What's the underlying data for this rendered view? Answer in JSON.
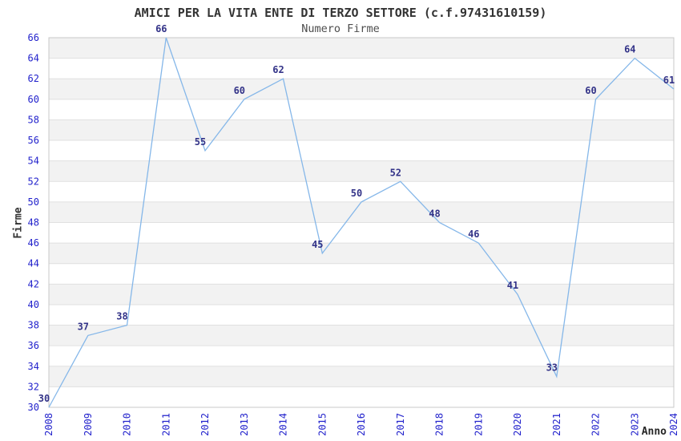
{
  "chart_data": {
    "type": "line",
    "title": "AMICI PER LA VITA ENTE DI TERZO SETTORE (c.f.97431610159)",
    "subtitle": "Numero Firme",
    "xlabel": "Anno",
    "ylabel": "Firme",
    "x": [
      2008,
      2009,
      2010,
      2011,
      2012,
      2013,
      2014,
      2015,
      2016,
      2017,
      2018,
      2019,
      2020,
      2021,
      2022,
      2023,
      2024
    ],
    "series": [
      {
        "name": "Numero Firme",
        "values": [
          30,
          37,
          38,
          66,
          55,
          60,
          62,
          45,
          50,
          52,
          48,
          46,
          41,
          33,
          60,
          64,
          61
        ]
      }
    ],
    "ylim": [
      30,
      66
    ],
    "ytick_step": 2,
    "grid": "horizontal-bands",
    "legend": "none",
    "data_labels_visible": true,
    "colors": {
      "line": "#85b7e9",
      "tick_label": "#2222cc",
      "data_label": "#333388",
      "band": "#f2f2f2",
      "grid_line": "#e0e0e0",
      "plot_border": "#c8c8c8",
      "title": "#333333",
      "subtitle": "#4d4d4d",
      "axis_label": "#262626",
      "background": "#ffffff"
    }
  }
}
